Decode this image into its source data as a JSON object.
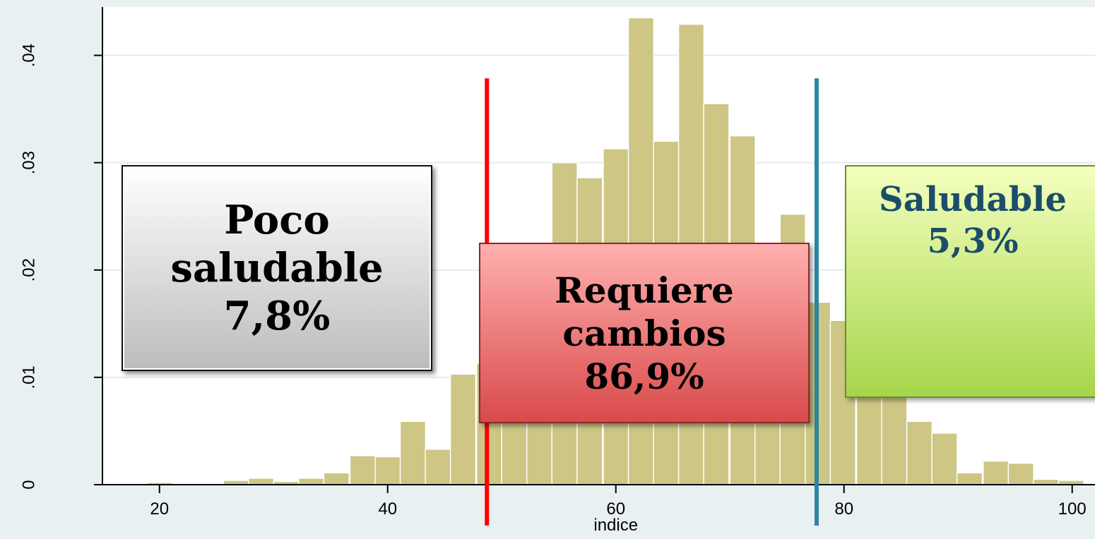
{
  "chart_data": {
    "type": "bar",
    "subtype": "histogram",
    "xlabel": "indice",
    "ylabel": "",
    "xlim": [
      15,
      102
    ],
    "ylim": [
      0,
      0.0445
    ],
    "xticks": [
      20,
      40,
      60,
      80,
      100
    ],
    "xtick_labels": [
      "20",
      "40",
      "60",
      "80",
      "100"
    ],
    "yticks": [
      0,
      0.01,
      0.02,
      0.03,
      0.04
    ],
    "ytick_labels": [
      "0",
      ".01",
      ".02",
      ".03",
      ".04"
    ],
    "grid": "horizontal",
    "bin_width": 2.22,
    "bins_start": [
      18.9,
      21.1,
      23.3,
      25.6,
      27.8,
      30.0,
      32.2,
      34.4,
      36.7,
      38.9,
      41.1,
      43.3,
      45.5,
      47.8,
      50.0,
      52.2,
      54.4,
      56.6,
      58.9,
      61.1,
      63.3,
      65.5,
      67.7,
      70.0,
      72.2,
      74.4,
      76.6,
      78.8,
      81.1,
      83.3,
      85.5,
      87.7,
      89.9,
      92.2,
      94.4,
      96.6,
      98.8
    ],
    "values": [
      0.0002,
      0.0001,
      0.0,
      0.0004,
      0.0006,
      0.0003,
      0.0006,
      0.0011,
      0.0027,
      0.0026,
      0.0059,
      0.0033,
      0.0103,
      0.0113,
      0.013,
      0.019,
      0.03,
      0.0286,
      0.0313,
      0.0435,
      0.032,
      0.0429,
      0.0355,
      0.0325,
      0.022,
      0.0252,
      0.017,
      0.0153,
      0.0136,
      0.0104,
      0.0059,
      0.0048,
      0.0011,
      0.0022,
      0.002,
      0.0005,
      0.0004
    ],
    "bar_color": "#cdc685",
    "thresholds": [
      {
        "x": 48.7,
        "color": "#ff0000"
      },
      {
        "x": 77.6,
        "color": "#2e86a0"
      }
    ],
    "annotations": [
      {
        "text": "Poco\nsaludable\n7,8%"
      },
      {
        "text": "Requiere\ncambios\n86,9%"
      },
      {
        "text": "Saludable\n5,3%"
      }
    ]
  }
}
